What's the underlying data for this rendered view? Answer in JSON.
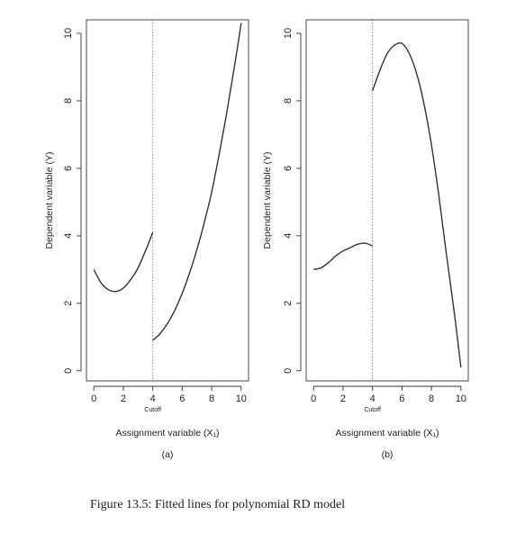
{
  "caption": "Figure 13.5: Fitted lines for polynomial RD model",
  "chart_data": [
    {
      "type": "line",
      "panel_label": "(a)",
      "xlabel": "Assignment variable (X₁)",
      "ylabel": "Dependent variable (Y)",
      "xlim": [
        -0.5,
        10.5
      ],
      "ylim": [
        -0.3,
        10.4
      ],
      "xticks": [
        0,
        2,
        4,
        6,
        8,
        10
      ],
      "yticks": [
        0,
        2,
        4,
        6,
        8,
        10
      ],
      "cutoff": 4,
      "cutoff_label": "Cutoff",
      "series": [
        {
          "x": [
            0,
            0.5,
            1,
            1.5,
            2,
            2.5,
            3,
            3.5,
            4
          ],
          "y": [
            3.0,
            2.6,
            2.4,
            2.35,
            2.45,
            2.7,
            3.05,
            3.55,
            4.1
          ]
        },
        {
          "x": [
            4,
            4.5,
            5,
            5.5,
            6,
            6.5,
            7,
            7.5,
            8,
            8.5,
            9,
            9.5,
            10
          ],
          "y": [
            0.9,
            1.1,
            1.4,
            1.8,
            2.3,
            2.9,
            3.6,
            4.4,
            5.3,
            6.4,
            7.6,
            8.9,
            10.3
          ]
        }
      ]
    },
    {
      "type": "line",
      "panel_label": "(b)",
      "xlabel": "Assignment variable (X₁)",
      "ylabel": "Dependent variable (Y)",
      "xlim": [
        -0.5,
        10.5
      ],
      "ylim": [
        -0.3,
        10.4
      ],
      "xticks": [
        0,
        2,
        4,
        6,
        8,
        10
      ],
      "yticks": [
        0,
        2,
        4,
        6,
        8,
        10
      ],
      "cutoff": 4,
      "cutoff_label": "Cutoff",
      "series": [
        {
          "x": [
            0,
            0.5,
            1,
            1.5,
            2,
            2.5,
            3,
            3.5,
            4
          ],
          "y": [
            3.0,
            3.05,
            3.2,
            3.4,
            3.55,
            3.65,
            3.75,
            3.78,
            3.7
          ]
        },
        {
          "x": [
            4,
            4.5,
            5,
            5.5,
            6,
            6.5,
            7,
            7.5,
            8,
            8.5,
            9,
            9.5,
            10
          ],
          "y": [
            8.3,
            8.9,
            9.4,
            9.65,
            9.7,
            9.4,
            8.8,
            7.9,
            6.7,
            5.2,
            3.5,
            1.9,
            0.1
          ]
        }
      ]
    }
  ]
}
